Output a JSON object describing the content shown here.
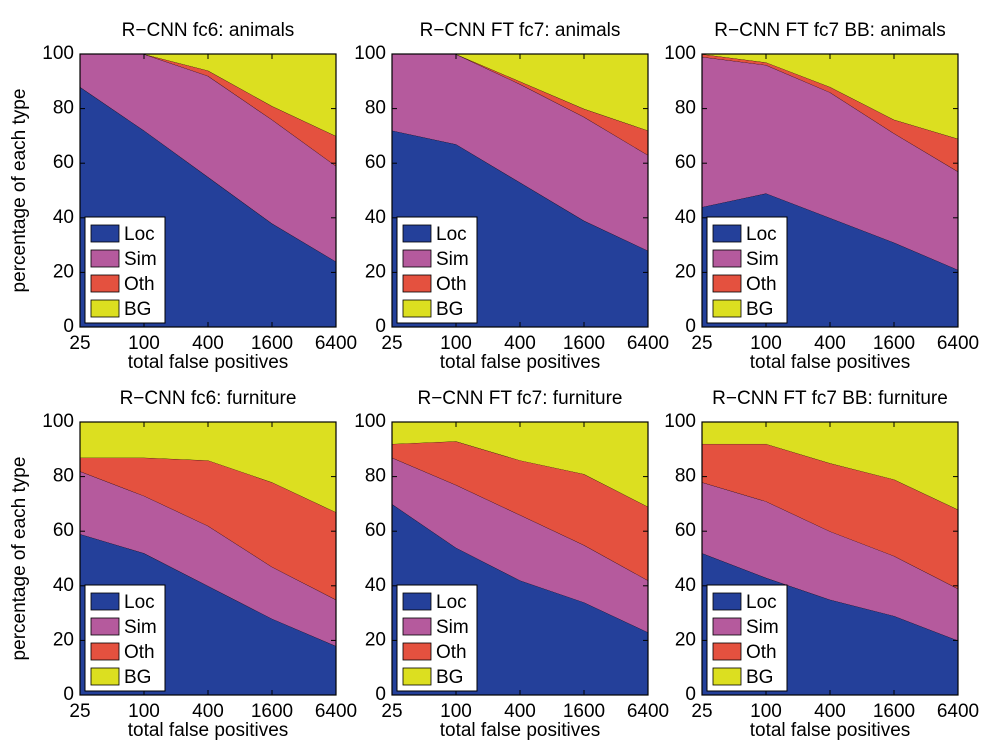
{
  "chart_data": [
    {
      "type": "area",
      "title": "R−CNN fc6: animals",
      "xlabel": "total false positives",
      "ylabel": "percentage of each type",
      "categories": [
        "25",
        "100",
        "400",
        "1600",
        "6400"
      ],
      "ylim": [
        0,
        100
      ],
      "yticks": [
        "0",
        "20",
        "40",
        "60",
        "80",
        "100"
      ],
      "legend_position": "bottom-left",
      "series": [
        {
          "name": "Loc",
          "color": "#24409a",
          "values": [
            88,
            72,
            55,
            38,
            24
          ]
        },
        {
          "name": "Sim",
          "color": "#b55a9d",
          "values": [
            12,
            28,
            37,
            38,
            35
          ]
        },
        {
          "name": "Oth",
          "color": "#e4513f",
          "values": [
            0,
            0,
            2,
            5,
            11
          ]
        },
        {
          "name": "BG",
          "color": "#dcdf20",
          "values": [
            0,
            0,
            6,
            19,
            30
          ]
        }
      ]
    },
    {
      "type": "area",
      "title": "R−CNN FT fc7: animals",
      "xlabel": "total false positives",
      "ylabel": "",
      "categories": [
        "25",
        "100",
        "400",
        "1600",
        "6400"
      ],
      "ylim": [
        0,
        100
      ],
      "yticks": [
        "0",
        "20",
        "40",
        "60",
        "80",
        "100"
      ],
      "legend_position": "bottom-left",
      "series": [
        {
          "name": "Loc",
          "color": "#24409a",
          "values": [
            72,
            67,
            53,
            39,
            28
          ]
        },
        {
          "name": "Sim",
          "color": "#b55a9d",
          "values": [
            28,
            33,
            36,
            38,
            35
          ]
        },
        {
          "name": "Oth",
          "color": "#e4513f",
          "values": [
            0,
            0,
            1,
            3,
            9
          ]
        },
        {
          "name": "BG",
          "color": "#dcdf20",
          "values": [
            0,
            0,
            10,
            20,
            28
          ]
        }
      ]
    },
    {
      "type": "area",
      "title": "R−CNN FT fc7 BB: animals",
      "xlabel": "total false positives",
      "ylabel": "",
      "categories": [
        "25",
        "100",
        "400",
        "1600",
        "6400"
      ],
      "ylim": [
        0,
        100
      ],
      "yticks": [
        "0",
        "20",
        "40",
        "60",
        "80",
        "100"
      ],
      "legend_position": "bottom-left",
      "series": [
        {
          "name": "Loc",
          "color": "#24409a",
          "values": [
            44,
            49,
            40,
            31,
            21
          ]
        },
        {
          "name": "Sim",
          "color": "#b55a9d",
          "values": [
            55,
            47,
            46,
            40,
            36
          ]
        },
        {
          "name": "Oth",
          "color": "#e4513f",
          "values": [
            1,
            1,
            2,
            5,
            12
          ]
        },
        {
          "name": "BG",
          "color": "#dcdf20",
          "values": [
            0,
            3,
            12,
            24,
            31
          ]
        }
      ]
    },
    {
      "type": "area",
      "title": "R−CNN fc6: furniture",
      "xlabel": "total false positives",
      "ylabel": "percentage of each type",
      "categories": [
        "25",
        "100",
        "400",
        "1600",
        "6400"
      ],
      "ylim": [
        0,
        100
      ],
      "yticks": [
        "0",
        "20",
        "40",
        "60",
        "80",
        "100"
      ],
      "legend_position": "bottom-left",
      "series": [
        {
          "name": "Loc",
          "color": "#24409a",
          "values": [
            59,
            52,
            40,
            28,
            18
          ]
        },
        {
          "name": "Sim",
          "color": "#b55a9d",
          "values": [
            23,
            21,
            22,
            19,
            17
          ]
        },
        {
          "name": "Oth",
          "color": "#e4513f",
          "values": [
            5,
            14,
            24,
            31,
            32
          ]
        },
        {
          "name": "BG",
          "color": "#dcdf20",
          "values": [
            13,
            13,
            14,
            22,
            33
          ]
        }
      ]
    },
    {
      "type": "area",
      "title": "R−CNN FT fc7: furniture",
      "xlabel": "total false positives",
      "ylabel": "",
      "categories": [
        "25",
        "100",
        "400",
        "1600",
        "6400"
      ],
      "ylim": [
        0,
        100
      ],
      "yticks": [
        "0",
        "20",
        "40",
        "60",
        "80",
        "100"
      ],
      "legend_position": "bottom-left",
      "series": [
        {
          "name": "Loc",
          "color": "#24409a",
          "values": [
            70,
            54,
            42,
            34,
            23
          ]
        },
        {
          "name": "Sim",
          "color": "#b55a9d",
          "values": [
            17,
            23,
            24,
            21,
            19
          ]
        },
        {
          "name": "Oth",
          "color": "#e4513f",
          "values": [
            5,
            16,
            20,
            26,
            27
          ]
        },
        {
          "name": "BG",
          "color": "#dcdf20",
          "values": [
            8,
            7,
            14,
            19,
            31
          ]
        }
      ]
    },
    {
      "type": "area",
      "title": "R−CNN FT fc7 BB: furniture",
      "xlabel": "total false positives",
      "ylabel": "",
      "categories": [
        "25",
        "100",
        "400",
        "1600",
        "6400"
      ],
      "ylim": [
        0,
        100
      ],
      "yticks": [
        "0",
        "20",
        "40",
        "60",
        "80",
        "100"
      ],
      "legend_position": "bottom-left",
      "series": [
        {
          "name": "Loc",
          "color": "#24409a",
          "values": [
            52,
            43,
            35,
            29,
            20
          ]
        },
        {
          "name": "Sim",
          "color": "#b55a9d",
          "values": [
            26,
            28,
            25,
            22,
            19
          ]
        },
        {
          "name": "Oth",
          "color": "#e4513f",
          "values": [
            14,
            21,
            25,
            28,
            29
          ]
        },
        {
          "name": "BG",
          "color": "#dcdf20",
          "values": [
            8,
            8,
            15,
            21,
            32
          ]
        }
      ]
    }
  ]
}
